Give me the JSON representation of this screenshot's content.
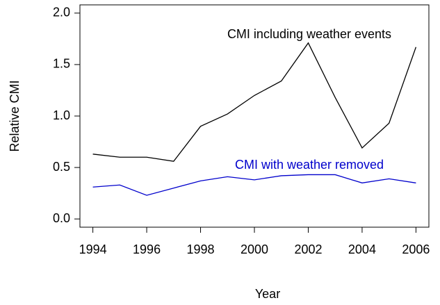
{
  "chart_data": {
    "type": "line",
    "x_label": "Year",
    "y_label": "Relative CMI",
    "x": [
      1994,
      1995,
      1996,
      1997,
      1998,
      1999,
      2000,
      2001,
      2002,
      2003,
      2004,
      2005,
      2006
    ],
    "series": [
      {
        "name": "CMI including weather events",
        "color": "#000000",
        "values": [
          0.63,
          0.6,
          0.6,
          0.56,
          0.9,
          1.02,
          1.2,
          1.34,
          1.71,
          1.18,
          0.69,
          0.93,
          1.67
        ]
      },
      {
        "name": "CMI with weather removed",
        "color": "#0000cc",
        "values": [
          0.31,
          0.33,
          0.23,
          0.3,
          0.37,
          0.41,
          0.38,
          0.42,
          0.43,
          0.43,
          0.35,
          0.39,
          0.35
        ]
      }
    ],
    "xlim": [
      1993.52,
      2006.48
    ],
    "xticks": [
      1994,
      1996,
      1998,
      2000,
      2002,
      2004,
      2006
    ],
    "ylim": [
      -0.08,
      2.08
    ],
    "yticks": [
      {
        "value": 0,
        "label": "0.0"
      },
      0.5,
      {
        "value": 1,
        "label": "1.0"
      },
      1.5,
      {
        "value": 2,
        "label": "2.0"
      }
    ]
  }
}
